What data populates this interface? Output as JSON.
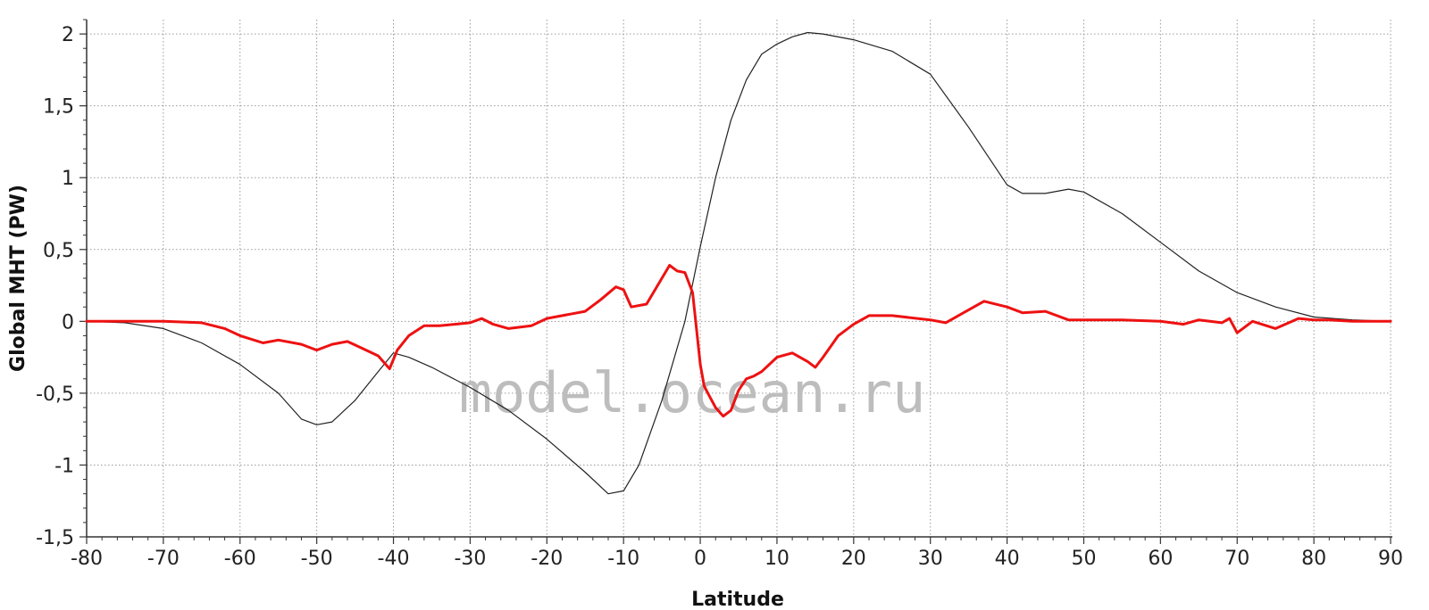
{
  "chart_data": {
    "type": "line",
    "xlabel": "Latitude",
    "ylabel": "Global MHT (PW)",
    "xlim": [
      -80,
      90
    ],
    "ylim": [
      -1.5,
      2.1
    ],
    "x_ticks": [
      -80,
      -70,
      -60,
      -50,
      -40,
      -30,
      -20,
      -10,
      0,
      10,
      20,
      30,
      40,
      50,
      60,
      70,
      80,
      90
    ],
    "x_tick_labels": [
      "-80",
      "-70",
      "-60",
      "-50",
      "-40",
      "-30",
      "-20",
      "-10",
      "0",
      "10",
      "20",
      "30",
      "40",
      "50",
      "60",
      "70",
      "80",
      "90"
    ],
    "y_ticks": [
      -1.5,
      -1,
      -0.5,
      0,
      0.5,
      1,
      1.5,
      2
    ],
    "y_tick_labels": [
      "-1,5",
      "-1",
      "-0,5",
      "0",
      "0,5",
      "1",
      "1,5",
      "2"
    ],
    "grid": true,
    "watermark": "model.ocean.ru",
    "series": [
      {
        "color": "#222222",
        "x": [
          -80,
          -75,
          -70,
          -65,
          -60,
          -55,
          -52,
          -50,
          -48,
          -45,
          -42,
          -40,
          -38,
          -35,
          -30,
          -25,
          -20,
          -15,
          -12,
          -10,
          -8,
          -5,
          -2,
          0,
          2,
          4,
          6,
          8,
          10,
          12,
          14,
          16,
          20,
          25,
          30,
          35,
          40,
          42,
          45,
          48,
          50,
          55,
          60,
          65,
          70,
          75,
          80,
          85,
          90
        ],
        "y": [
          0,
          -0.01,
          -0.05,
          -0.15,
          -0.3,
          -0.5,
          -0.68,
          -0.72,
          -0.7,
          -0.55,
          -0.35,
          -0.22,
          -0.25,
          -0.32,
          -0.46,
          -0.62,
          -0.82,
          -1.05,
          -1.2,
          -1.18,
          -1.0,
          -0.55,
          0.0,
          0.52,
          1.0,
          1.4,
          1.68,
          1.86,
          1.93,
          1.98,
          2.01,
          2.0,
          1.96,
          1.88,
          1.72,
          1.35,
          0.95,
          0.89,
          0.89,
          0.92,
          0.9,
          0.75,
          0.55,
          0.35,
          0.2,
          0.1,
          0.03,
          0.01,
          0.0
        ]
      },
      {
        "color": "#ee1111",
        "x": [
          -80,
          -70,
          -65,
          -62,
          -60,
          -57,
          -55,
          -52,
          -50,
          -48,
          -46,
          -44,
          -42,
          -40.5,
          -39.5,
          -38,
          -36,
          -34,
          -32,
          -30,
          -28.5,
          -27,
          -25,
          -22,
          -20,
          -17,
          -15,
          -13,
          -11,
          -10,
          -9,
          -7,
          -5,
          -4,
          -3,
          -2,
          -1,
          0,
          0.5,
          1,
          2,
          3,
          4,
          5,
          6,
          7,
          8,
          10,
          12,
          14,
          15,
          16,
          18,
          20,
          22,
          25,
          30,
          32,
          35,
          37,
          40,
          42,
          45,
          48,
          50,
          55,
          60,
          63,
          65,
          68,
          69,
          70,
          72,
          75,
          78,
          80,
          82,
          85,
          90
        ],
        "y": [
          0,
          0,
          -0.01,
          -0.05,
          -0.1,
          -0.15,
          -0.13,
          -0.16,
          -0.2,
          -0.16,
          -0.14,
          -0.19,
          -0.24,
          -0.33,
          -0.2,
          -0.1,
          -0.03,
          -0.03,
          -0.02,
          -0.01,
          0.02,
          -0.02,
          -0.05,
          -0.03,
          0.02,
          0.05,
          0.07,
          0.15,
          0.24,
          0.22,
          0.1,
          0.12,
          0.3,
          0.39,
          0.35,
          0.34,
          0.2,
          -0.3,
          -0.45,
          -0.5,
          -0.6,
          -0.66,
          -0.62,
          -0.48,
          -0.4,
          -0.38,
          -0.35,
          -0.25,
          -0.22,
          -0.28,
          -0.32,
          -0.25,
          -0.1,
          -0.02,
          0.04,
          0.04,
          0.01,
          -0.01,
          0.08,
          0.14,
          0.1,
          0.06,
          0.07,
          0.01,
          0.01,
          0.01,
          0.0,
          -0.02,
          0.01,
          -0.01,
          0.02,
          -0.08,
          0.0,
          -0.05,
          0.02,
          0.01,
          0.01,
          0.0,
          0.0
        ]
      }
    ]
  }
}
